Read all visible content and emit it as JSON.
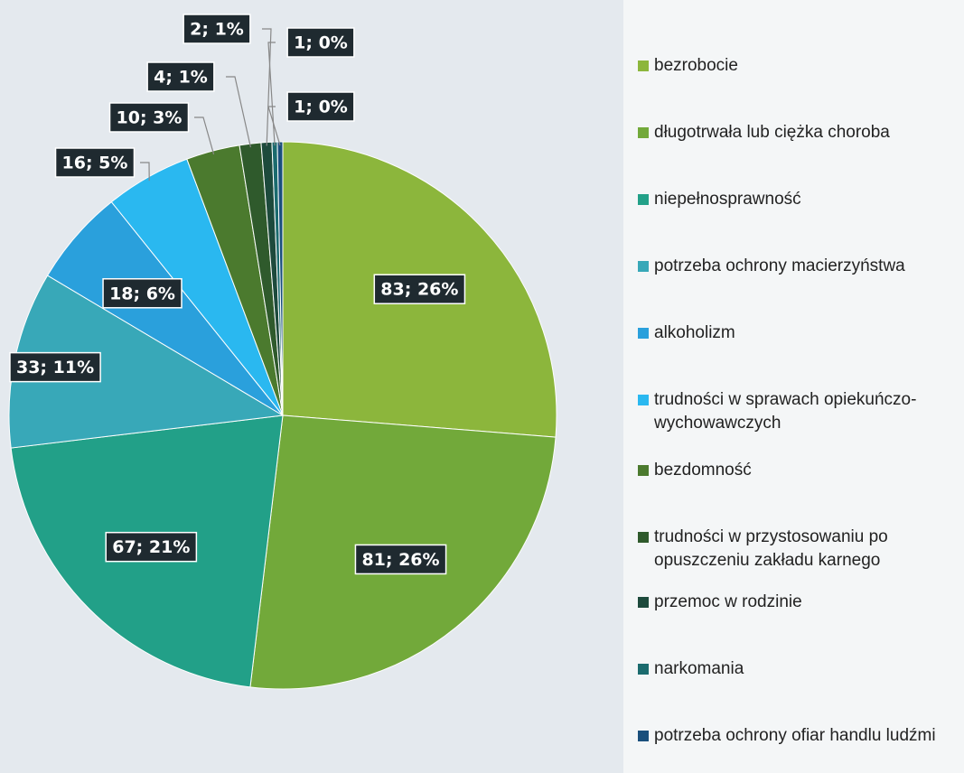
{
  "chart_data": {
    "type": "pie",
    "categories": [
      "bezrobocie",
      "długotrwała lub ciężka choroba",
      "niepełnosprawność",
      "potrzeba ochrony macierzyństwa",
      "alkoholizm",
      "trudności w sprawach opiekuńczo-wychowawczych",
      "bezdomność",
      "trudności w przystosowaniu po opuszczeniu zakładu karnego",
      "przemoc w rodzinie",
      "narkomania",
      "potrzeba  ochrony ofiar handlu ludźmi"
    ],
    "values": [
      83,
      81,
      67,
      33,
      18,
      16,
      10,
      4,
      2,
      1,
      1
    ],
    "value_labels": [
      "83; 26%",
      "81; 26%",
      "67; 21%",
      "33; 11%",
      "18; 6%",
      "16; 5%",
      "10; 3%",
      "4; 1%",
      "2; 1%",
      "1; 0%",
      "1; 0%"
    ],
    "colors": [
      "#8cb63c",
      "#72a93a",
      "#22a088",
      "#38a8b8",
      "#2aa0dc",
      "#2ab8f0",
      "#4b7a2e",
      "#2f5a2c",
      "#1d4a3c",
      "#1b6b6e",
      "#1a4f7c"
    ],
    "legend": "right"
  }
}
